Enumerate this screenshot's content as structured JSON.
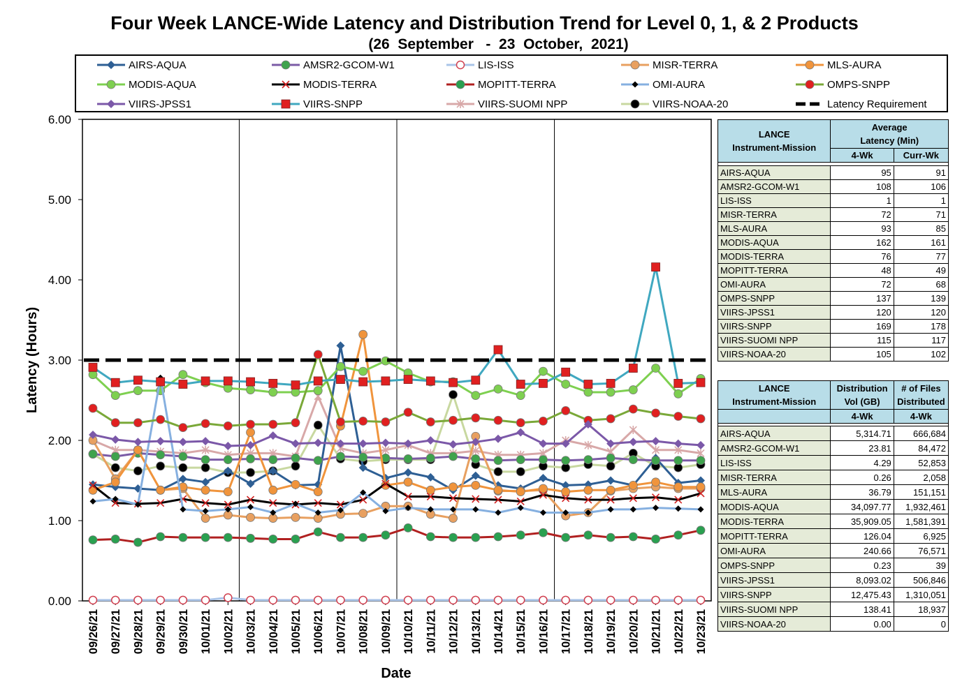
{
  "title": "Four Week LANCE-Wide Latency and Distribution Trend for Level 0, 1, & 2 Products",
  "subtitle": "(26  September   -  23  October,  2021)",
  "chart_data": {
    "type": "line",
    "xlabel": "Date",
    "ylabel": "Latency (Hours)",
    "ylim": [
      0,
      6
    ],
    "yticks": [
      "0.00",
      "1.00",
      "2.00",
      "3.00",
      "4.00",
      "5.00",
      "6.00"
    ],
    "grid": "vertical every 7 days",
    "legend_position": "top",
    "categories": [
      "09/26/21",
      "09/27/21",
      "09/28/21",
      "09/29/21",
      "09/30/21",
      "10/01/21",
      "10/02/21",
      "10/03/21",
      "10/04/21",
      "10/05/21",
      "10/06/21",
      "10/07/21",
      "10/08/21",
      "10/09/21",
      "10/10/21",
      "10/11/21",
      "10/12/21",
      "10/13/21",
      "10/14/21",
      "10/15/21",
      "10/16/21",
      "10/17/21",
      "10/18/21",
      "10/19/21",
      "10/20/21",
      "10/21/21",
      "10/22/21",
      "10/23/21"
    ],
    "series": [
      {
        "name": "AIRS-AQUA",
        "color": "#2e5f94",
        "marker": "diamond",
        "markerColor": "#2e5f94",
        "values": [
          1.45,
          1.42,
          1.4,
          1.38,
          1.52,
          1.48,
          1.62,
          1.46,
          1.62,
          1.44,
          1.45,
          3.18,
          1.66,
          1.53,
          1.6,
          1.54,
          1.38,
          1.56,
          1.44,
          1.4,
          1.53,
          1.44,
          1.45,
          1.5,
          1.44,
          1.78,
          1.47,
          1.5
        ]
      },
      {
        "name": "AMSR2-GCOM-W1",
        "color": "#7b5ba6",
        "marker": "circle",
        "markerColor": "#3fa34d",
        "values": [
          1.83,
          1.8,
          1.84,
          1.82,
          1.8,
          1.76,
          1.76,
          1.77,
          1.76,
          1.78,
          1.75,
          1.8,
          1.79,
          1.78,
          1.77,
          1.78,
          1.8,
          1.77,
          1.75,
          1.76,
          1.76,
          1.75,
          1.76,
          1.78,
          1.76,
          1.75,
          1.75,
          1.75
        ]
      },
      {
        "name": "LIS-ISS",
        "color": "#aac4e8",
        "marker": "circle-open",
        "markerColor": "#d04050",
        "values": [
          0.01,
          0.01,
          0.01,
          0.01,
          0.01,
          0.01,
          0.04,
          0.01,
          0.01,
          0.01,
          0.01,
          0.01,
          0.01,
          0.01,
          0.01,
          0.01,
          0.01,
          0.01,
          0.01,
          0.01,
          0.01,
          0.01,
          0.01,
          0.01,
          0.01,
          0.01,
          0.01,
          0.01
        ]
      },
      {
        "name": "MISR-TERRA",
        "color": "#e8a060",
        "marker": "circle",
        "markerColor": "#e8a060",
        "values": [
          2.0,
          1.52,
          1.88,
          1.38,
          1.4,
          1.03,
          1.07,
          1.04,
          1.03,
          1.04,
          1.03,
          1.08,
          1.09,
          1.18,
          1.18,
          1.08,
          1.03,
          2.05,
          1.37,
          1.37,
          1.38,
          1.06,
          1.1,
          1.37,
          1.4,
          1.42,
          1.4,
          1.4
        ]
      },
      {
        "name": "MLS-AURA",
        "color": "#f0943c",
        "marker": "circle",
        "markerColor": "#f0943c",
        "values": [
          1.38,
          1.48,
          1.88,
          1.38,
          1.42,
          1.38,
          1.36,
          2.1,
          1.38,
          1.45,
          1.36,
          2.18,
          3.32,
          1.44,
          1.48,
          1.38,
          1.42,
          1.44,
          1.38,
          1.36,
          1.4,
          1.36,
          1.38,
          1.38,
          1.44,
          1.48,
          1.42,
          1.42
        ]
      },
      {
        "name": "MODIS-AQUA",
        "color": "#7ed050",
        "marker": "circle",
        "markerColor": "#7ed050",
        "values": [
          2.82,
          2.56,
          2.62,
          2.62,
          2.82,
          2.72,
          2.65,
          2.63,
          2.6,
          2.6,
          2.62,
          2.92,
          2.86,
          2.99,
          2.84,
          2.73,
          2.73,
          2.56,
          2.64,
          2.56,
          2.86,
          2.7,
          2.6,
          2.6,
          2.63,
          2.9,
          2.58,
          2.77
        ]
      },
      {
        "name": "MODIS-TERRA",
        "color": "#000000",
        "marker": "x",
        "markerColor": "#d02020",
        "values": [
          1.44,
          1.22,
          1.21,
          1.22,
          1.27,
          1.22,
          1.2,
          1.26,
          1.22,
          1.2,
          1.22,
          1.2,
          1.26,
          1.46,
          1.3,
          1.3,
          1.28,
          1.27,
          1.26,
          1.24,
          1.32,
          1.28,
          1.26,
          1.26,
          1.28,
          1.29,
          1.26,
          1.34
        ]
      },
      {
        "name": "MOPITT-TERRA",
        "color": "#b02020",
        "marker": "circle",
        "markerColor": "#2aa050",
        "values": [
          0.76,
          0.77,
          0.73,
          0.8,
          0.79,
          0.79,
          0.79,
          0.78,
          0.77,
          0.77,
          0.86,
          0.79,
          0.79,
          0.82,
          0.91,
          0.8,
          0.79,
          0.79,
          0.8,
          0.82,
          0.85,
          0.79,
          0.82,
          0.79,
          0.8,
          0.77,
          0.82,
          0.88
        ]
      },
      {
        "name": "OMI-AURA",
        "color": "#86b0e0",
        "marker": "diamond-small",
        "markerColor": "#000000",
        "values": [
          1.24,
          1.27,
          1.2,
          2.78,
          1.14,
          1.12,
          1.14,
          1.17,
          1.1,
          1.21,
          1.1,
          1.13,
          1.35,
          1.12,
          1.16,
          1.14,
          1.14,
          1.14,
          1.1,
          1.16,
          1.1,
          1.1,
          1.1,
          1.14,
          1.14,
          1.16,
          1.15,
          1.14
        ]
      },
      {
        "name": "OMPS-SNPP",
        "color": "#7aa838",
        "marker": "circle",
        "markerColor": "#e02020",
        "values": [
          2.4,
          2.22,
          2.22,
          2.26,
          2.16,
          2.21,
          2.18,
          2.2,
          2.2,
          2.22,
          3.07,
          2.23,
          2.24,
          2.23,
          2.35,
          2.23,
          2.25,
          2.28,
          2.25,
          2.22,
          2.24,
          2.37,
          2.25,
          2.27,
          2.39,
          2.34,
          2.3,
          2.27
        ]
      },
      {
        "name": "VIIRS-JPSS1",
        "color": "#7b58a8",
        "marker": "diamond",
        "markerColor": "#7b58a8",
        "values": [
          2.07,
          2.01,
          1.98,
          1.99,
          1.98,
          1.99,
          1.93,
          1.94,
          2.06,
          1.96,
          1.97,
          1.96,
          1.96,
          1.97,
          1.96,
          2.0,
          1.95,
          1.98,
          2.02,
          2.1,
          1.96,
          1.96,
          2.2,
          1.96,
          1.98,
          1.99,
          1.96,
          1.94
        ]
      },
      {
        "name": "VIIRS-SNPP",
        "color": "#40a8c0",
        "marker": "square",
        "markerColor": "#e02020",
        "values": [
          2.91,
          2.72,
          2.75,
          2.73,
          2.7,
          2.74,
          2.74,
          2.73,
          2.71,
          2.69,
          2.74,
          2.76,
          2.73,
          2.74,
          2.76,
          2.74,
          2.72,
          2.75,
          3.13,
          2.7,
          2.71,
          2.85,
          2.7,
          2.71,
          2.9,
          4.16,
          2.71,
          2.72
        ]
      },
      {
        "name": "VIIRS-SUOMI NPP",
        "color": "#d8a8a8",
        "marker": "star",
        "markerColor": "#d8a8a8",
        "values": [
          2.0,
          1.88,
          1.88,
          1.86,
          1.84,
          1.88,
          1.82,
          1.84,
          1.84,
          1.8,
          2.55,
          1.9,
          1.84,
          1.88,
          1.94,
          1.84,
          1.84,
          1.87,
          1.82,
          1.82,
          1.84,
          2.0,
          1.94,
          1.86,
          2.13,
          1.88,
          1.88,
          1.84
        ]
      },
      {
        "name": "VIIRS-NOAA-20",
        "color": "#c8d8a0",
        "marker": "circle",
        "markerColor": "#000000",
        "values": [
          1.83,
          1.66,
          1.62,
          1.68,
          1.66,
          1.66,
          1.6,
          1.6,
          1.62,
          1.68,
          2.19,
          1.77,
          1.74,
          1.76,
          1.76,
          1.76,
          2.57,
          1.7,
          1.61,
          1.61,
          1.68,
          1.66,
          1.7,
          1.68,
          1.84,
          1.68,
          1.66,
          1.7
        ]
      },
      {
        "name": "Latency Requirement",
        "color": "#000000",
        "marker": "dash",
        "markerColor": "#000000",
        "values": [
          3,
          3,
          3,
          3,
          3,
          3,
          3,
          3,
          3,
          3,
          3,
          3,
          3,
          3,
          3,
          3,
          3,
          3,
          3,
          3,
          3,
          3,
          3,
          3,
          3,
          3,
          3,
          3
        ]
      }
    ]
  },
  "latency_table": {
    "col1": "LANCE\nInstrument-Mission",
    "col2": "Average\nLatency (Min)",
    "sub1": "4-Wk",
    "sub2": "Curr-Wk",
    "rows": [
      [
        "AIRS-AQUA",
        "95",
        "91"
      ],
      [
        "AMSR2-GCOM-W1",
        "108",
        "106"
      ],
      [
        "LIS-ISS",
        "1",
        "1"
      ],
      [
        "MISR-TERRA",
        "72",
        "71"
      ],
      [
        "MLS-AURA",
        "93",
        "85"
      ],
      [
        "MODIS-AQUA",
        "162",
        "161"
      ],
      [
        "MODIS-TERRA",
        "76",
        "77"
      ],
      [
        "MOPITT-TERRA",
        "48",
        "49"
      ],
      [
        "OMI-AURA",
        "72",
        "68"
      ],
      [
        "OMPS-SNPP",
        "137",
        "139"
      ],
      [
        "VIIRS-JPSS1",
        "120",
        "120"
      ],
      [
        "VIIRS-SNPP",
        "169",
        "178"
      ],
      [
        "VIIRS-SUOMI NPP",
        "115",
        "117"
      ],
      [
        "VIIRS-NOAA-20",
        "105",
        "102"
      ]
    ]
  },
  "distribution_table": {
    "col1": "LANCE\nInstrument-Mission",
    "col2": "Distribution\nVol (GB)",
    "col3": "# of Files\nDistributed",
    "sub1": "4-Wk",
    "sub2": "4-Wk",
    "rows": [
      [
        "AIRS-AQUA",
        "5,314.71",
        "666,684"
      ],
      [
        "AMSR2-GCOM-W1",
        "23.81",
        "84,472"
      ],
      [
        "LIS-ISS",
        "4.29",
        "52,853"
      ],
      [
        "MISR-TERRA",
        "0.26",
        "2,058"
      ],
      [
        "MLS-AURA",
        "36.79",
        "151,151"
      ],
      [
        "MODIS-AQUA",
        "34,097.77",
        "1,932,461"
      ],
      [
        "MODIS-TERRA",
        "35,909.05",
        "1,581,391"
      ],
      [
        "MOPITT-TERRA",
        "126.04",
        "6,925"
      ],
      [
        "OMI-AURA",
        "240.66",
        "76,571"
      ],
      [
        "OMPS-SNPP",
        "0.23",
        "39"
      ],
      [
        "VIIRS-JPSS1",
        "8,093.02",
        "506,846"
      ],
      [
        "VIIRS-SNPP",
        "12,475.43",
        "1,310,051"
      ],
      [
        "VIIRS-SUOMI NPP",
        "138.41",
        "18,937"
      ],
      [
        "VIIRS-NOAA-20",
        "0.00",
        "0"
      ]
    ]
  }
}
